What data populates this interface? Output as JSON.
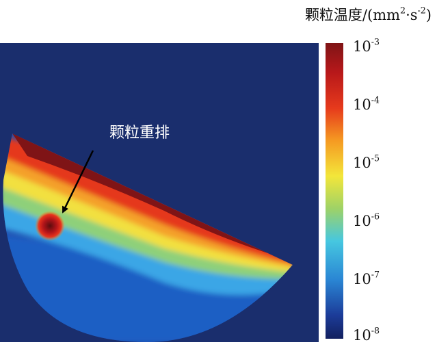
{
  "colorbar": {
    "title_text": "颗粒温度/(mm",
    "title_sup1": "2",
    "title_mid": "·s",
    "title_sup2": "-2",
    "title_end": ")",
    "ticks": [
      {
        "base": "10",
        "exp": "-3"
      },
      {
        "base": "10",
        "exp": "-4"
      },
      {
        "base": "10",
        "exp": "-5"
      },
      {
        "base": "10",
        "exp": "-6"
      },
      {
        "base": "10",
        "exp": "-7"
      },
      {
        "base": "10",
        "exp": "-8"
      }
    ]
  },
  "annotation": {
    "label": "颗粒重排"
  },
  "colors": {
    "background": "#1a2e6d",
    "max": "#7f1416",
    "min": "#12205f"
  }
}
